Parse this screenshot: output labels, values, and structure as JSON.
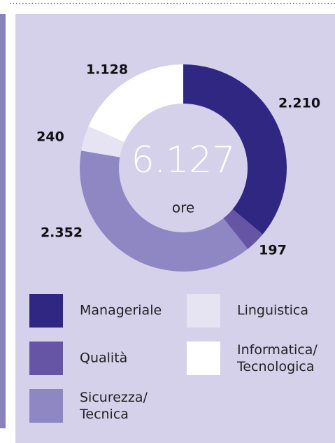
{
  "chart_data": {
    "type": "donut",
    "series": [
      {
        "name": "Manageriale",
        "color": "#302783",
        "values": [
          2210
        ],
        "value_labels": [
          "2.210"
        ]
      },
      {
        "name": "Qualità",
        "color": "#6655a4",
        "values": [
          197
        ],
        "value_labels": [
          "197"
        ]
      },
      {
        "name": "Sicurezza/Tecnica",
        "color": "#8f87c3",
        "values": [
          2352
        ],
        "value_labels": [
          "2.352"
        ]
      },
      {
        "name": "Linguistica",
        "color": "#e6e3f3",
        "values": [
          240
        ],
        "value_labels": [
          "240"
        ]
      },
      {
        "name": "Informatica/Tecnologica",
        "color": "#ffffff",
        "values": [
          1128
        ],
        "value_labels": [
          "1.128"
        ]
      }
    ],
    "total": {
      "value": 6127,
      "label": "6.127"
    },
    "unit": "ore"
  }
}
